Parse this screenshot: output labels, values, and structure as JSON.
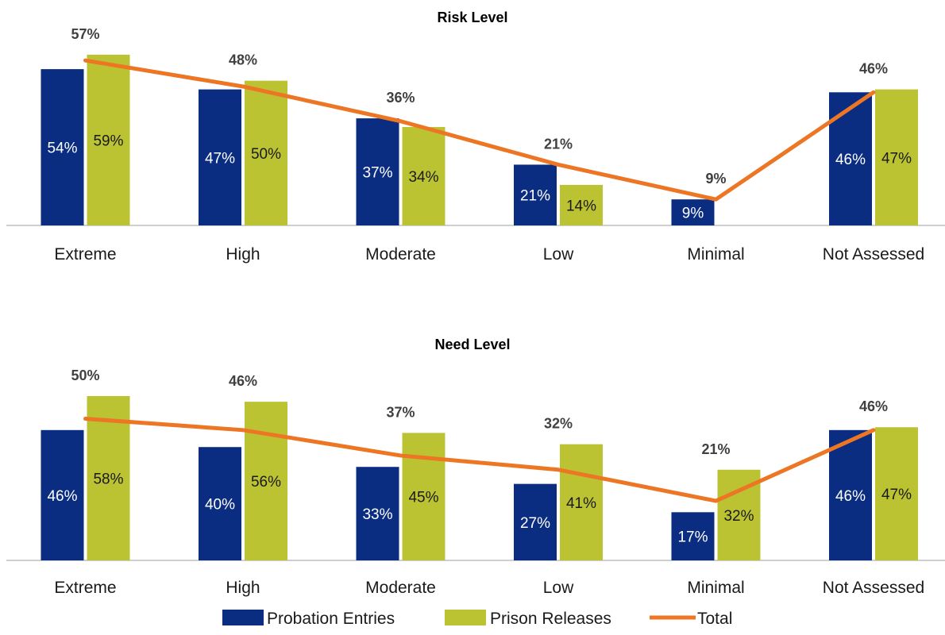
{
  "colors": {
    "probation": "#0a2d82",
    "prison": "#bcc333",
    "total": "#ed7624",
    "axis": "#bfbfbf"
  },
  "legend": {
    "probation_label": "Probation Entries",
    "prison_label": "Prison Releases",
    "total_label": "Total"
  },
  "chart_data": [
    {
      "type": "bar",
      "title": "Risk Level",
      "categories": [
        "Extreme",
        "High",
        "Moderate",
        "Low",
        "Minimal",
        "Not Assessed"
      ],
      "series": [
        {
          "name": "Probation Entries",
          "type": "bar",
          "values": [
            54,
            47,
            37,
            21,
            9,
            46
          ],
          "labels": [
            "54%",
            "47%",
            "37%",
            "21%",
            "9%",
            "46%"
          ]
        },
        {
          "name": "Prison Releases",
          "type": "bar",
          "values": [
            59,
            50,
            34,
            14,
            null,
            47
          ],
          "labels": [
            "59%",
            "50%",
            "34%",
            "14%",
            "",
            "47%"
          ]
        },
        {
          "name": "Total",
          "type": "line",
          "values": [
            57,
            48,
            36,
            21,
            9,
            46
          ],
          "labels": [
            "57%",
            "48%",
            "36%",
            "21%",
            "9%",
            "46%"
          ]
        }
      ],
      "ylim": [
        0,
        65
      ]
    },
    {
      "type": "bar",
      "title": "Need Level",
      "categories": [
        "Extreme",
        "High",
        "Moderate",
        "Low",
        "Minimal",
        "Not Assessed"
      ],
      "series": [
        {
          "name": "Probation Entries",
          "type": "bar",
          "values": [
            46,
            40,
            33,
            27,
            17,
            46
          ],
          "labels": [
            "46%",
            "40%",
            "33%",
            "27%",
            "17%",
            "46%"
          ]
        },
        {
          "name": "Prison Releases",
          "type": "bar",
          "values": [
            58,
            56,
            45,
            41,
            32,
            47
          ],
          "labels": [
            "58%",
            "56%",
            "45%",
            "41%",
            "32%",
            "47%"
          ]
        },
        {
          "name": "Total",
          "type": "line",
          "values": [
            50,
            46,
            37,
            32,
            21,
            46
          ],
          "labels": [
            "50%",
            "46%",
            "37%",
            "32%",
            "21%",
            "46%"
          ]
        }
      ],
      "ylim": [
        0,
        65
      ]
    }
  ]
}
